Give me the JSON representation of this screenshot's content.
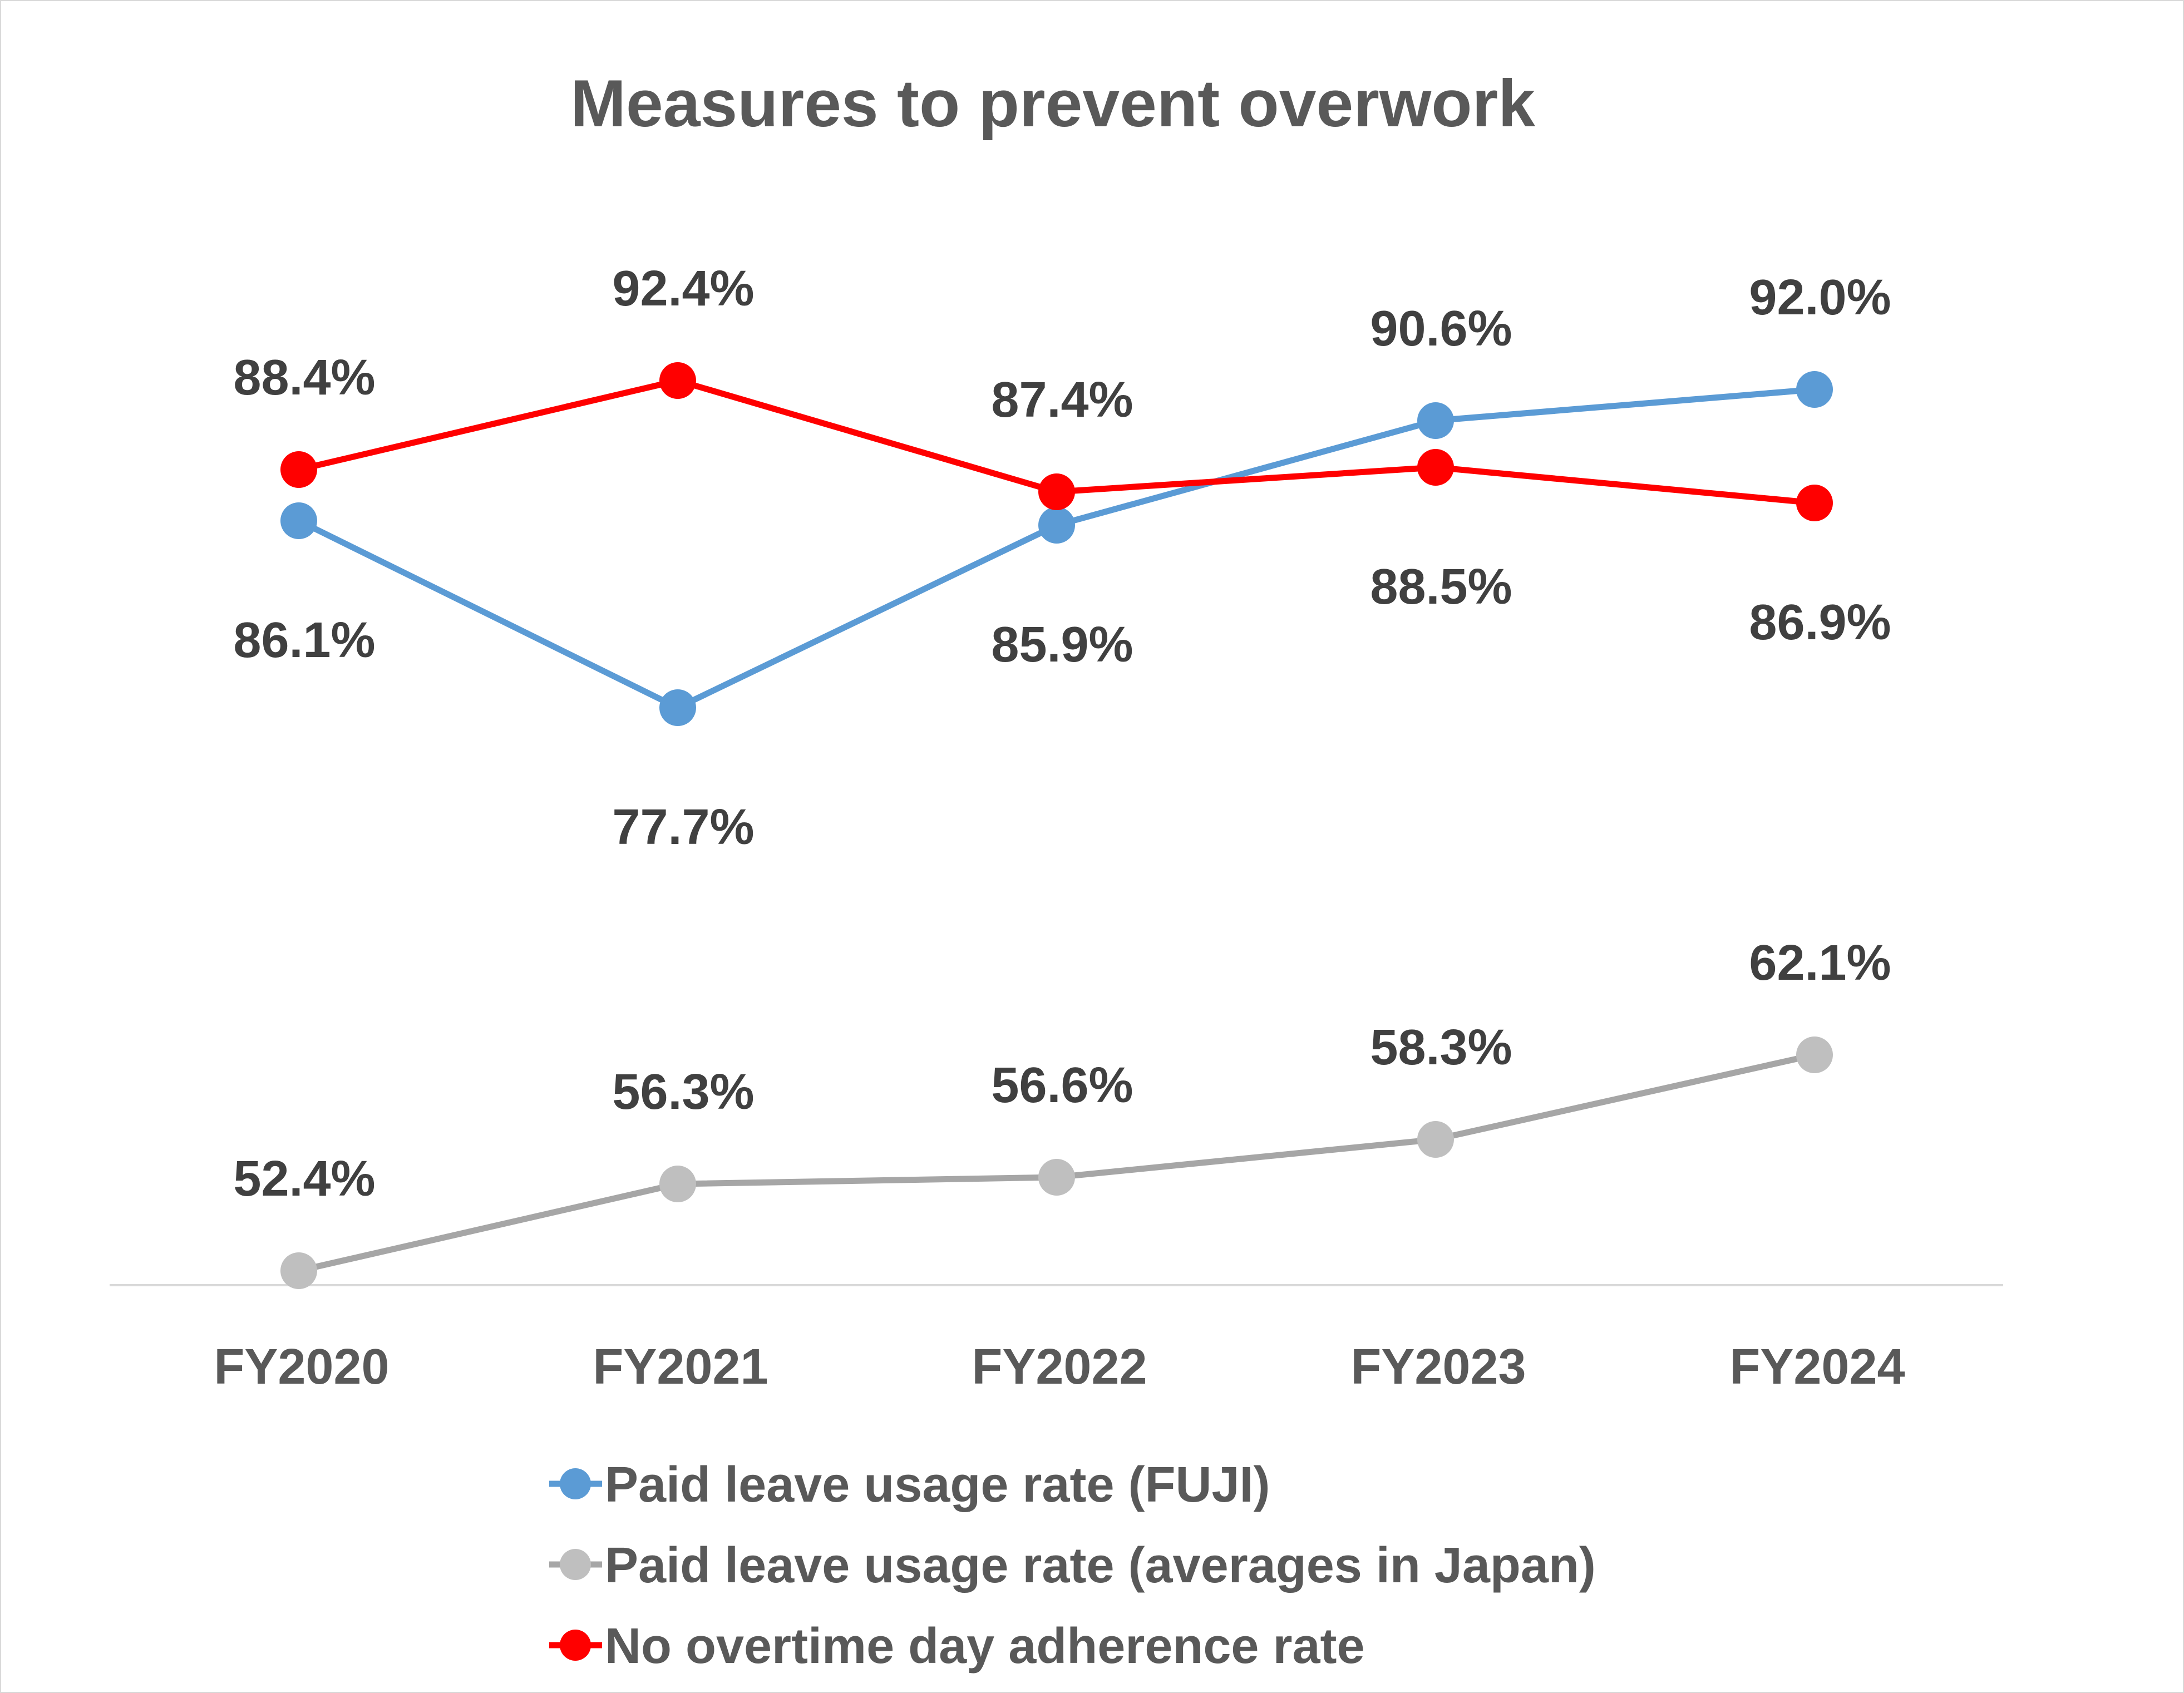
{
  "chart_data": {
    "type": "line",
    "title": "Measures to prevent overwork",
    "categories": [
      "FY2020",
      "FY2021",
      "FY2022",
      "FY2023",
      "FY2024"
    ],
    "series": [
      {
        "name": "Paid leave usage rate (FUJI)",
        "values": [
          86.1,
          77.7,
          85.9,
          90.6,
          92.0
        ],
        "labels": [
          "86.1%",
          "77.7%",
          "85.9%",
          "90.6%",
          "92.0%"
        ],
        "label_position": [
          "below",
          "below",
          "below",
          "above",
          "above"
        ],
        "color": "#5b9bd5"
      },
      {
        "name": "Paid leave usage rate (averages in Japan)",
        "values": [
          52.4,
          56.3,
          56.6,
          58.3,
          62.1
        ],
        "labels": [
          "52.4%",
          "56.3%",
          "56.6%",
          "58.3%",
          "62.1%"
        ],
        "label_position": [
          "above",
          "above",
          "above",
          "above",
          "above"
        ],
        "color": "#bfbfbf",
        "line_color": "#a6a6a6"
      },
      {
        "name": "No overtime day adherence rate",
        "values": [
          88.4,
          92.4,
          87.4,
          88.5,
          86.9
        ],
        "labels": [
          "88.4%",
          "92.4%",
          "87.4%",
          "88.5%",
          "86.9%"
        ],
        "label_position": [
          "above",
          "above",
          "above",
          "below",
          "below"
        ],
        "color": "#ff0000"
      }
    ],
    "xlabel": "",
    "ylabel": "",
    "ylim": [
      40,
      100
    ],
    "grid": false,
    "legend": "bottom"
  }
}
